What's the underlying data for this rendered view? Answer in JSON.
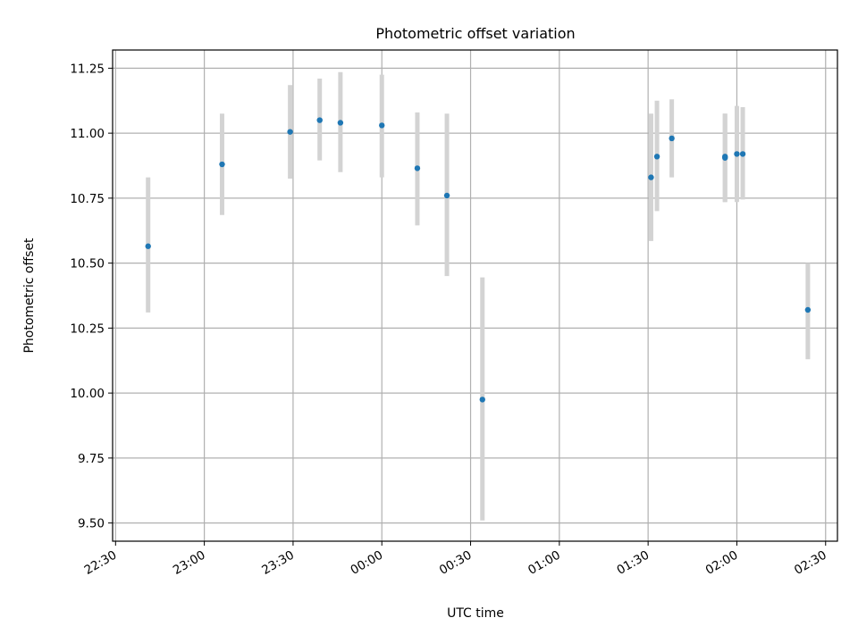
{
  "chart_data": {
    "type": "scatter",
    "title": "Photometric offset variation",
    "xlabel": "UTC time",
    "ylabel": "Photometric offset",
    "x_unit": "UTC time (hh:mm)",
    "xlim": [
      "22:29",
      "02:34"
    ],
    "ylim": [
      9.43,
      11.32
    ],
    "grid": true,
    "x_ticks": [
      "22:30",
      "23:00",
      "23:30",
      "00:00",
      "00:30",
      "01:00",
      "01:30",
      "02:00",
      "02:30"
    ],
    "y_ticks": [
      "9.50",
      "9.75",
      "10.00",
      "10.25",
      "10.50",
      "10.75",
      "11.00",
      "11.25"
    ],
    "y_tick_values": [
      9.5,
      9.75,
      10.0,
      10.25,
      10.5,
      10.75,
      11.0,
      11.25
    ],
    "colors": {
      "point": "#1f77b4",
      "errorbar": "#d3d3d3",
      "grid": "#b0b0b0"
    },
    "points": [
      {
        "t": "22:41",
        "y": 10.565,
        "lo": 10.31,
        "hi": 10.83
      },
      {
        "t": "23:06",
        "y": 10.88,
        "lo": 10.685,
        "hi": 11.075
      },
      {
        "t": "23:29",
        "y": 11.005,
        "lo": 10.825,
        "hi": 11.185
      },
      {
        "t": "23:39",
        "y": 11.05,
        "lo": 10.895,
        "hi": 11.21
      },
      {
        "t": "23:46",
        "y": 11.04,
        "lo": 10.85,
        "hi": 11.235
      },
      {
        "t": "00:00",
        "y": 11.03,
        "lo": 10.83,
        "hi": 11.225
      },
      {
        "t": "00:12",
        "y": 10.865,
        "lo": 10.645,
        "hi": 11.08
      },
      {
        "t": "00:22",
        "y": 10.76,
        "lo": 10.45,
        "hi": 11.075
      },
      {
        "t": "00:34",
        "y": 9.975,
        "lo": 9.51,
        "hi": 10.445
      },
      {
        "t": "01:31",
        "y": 10.83,
        "lo": 10.585,
        "hi": 11.075
      },
      {
        "t": "01:33",
        "y": 10.91,
        "lo": 10.7,
        "hi": 11.125
      },
      {
        "t": "01:38",
        "y": 10.98,
        "lo": 10.83,
        "hi": 11.13
      },
      {
        "t": "01:56",
        "y": 10.91,
        "lo": 10.735,
        "hi": 11.075
      },
      {
        "t": "01:56",
        "y": 10.905,
        "lo": 10.735,
        "hi": 11.075
      },
      {
        "t": "02:00",
        "y": 10.92,
        "lo": 10.735,
        "hi": 11.105
      },
      {
        "t": "02:02",
        "y": 10.92,
        "lo": 10.745,
        "hi": 11.1
      },
      {
        "t": "02:24",
        "y": 10.32,
        "lo": 10.13,
        "hi": 10.5
      }
    ]
  }
}
